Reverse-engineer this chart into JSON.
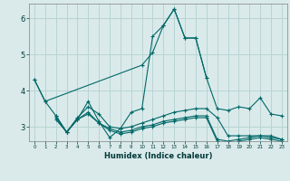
{
  "background_color": "#daeaea",
  "grid_color": "#b8d4d4",
  "line_color": "#006868",
  "xlabel": "Humidex (Indice chaleur)",
  "ylim": [
    2.6,
    6.4
  ],
  "xlim": [
    -0.5,
    23.5
  ],
  "yticks": [
    3,
    4,
    5,
    6
  ],
  "xtick_labels": [
    "0",
    "1",
    "2",
    "3",
    "4",
    "5",
    "6",
    "7",
    "8",
    "9",
    "10",
    "11",
    "12",
    "13",
    "14",
    "15",
    "16",
    "17",
    "18",
    "19",
    "20",
    "21",
    "22",
    "23"
  ],
  "series": [
    [
      4.3,
      3.7,
      null,
      null,
      null,
      null,
      null,
      null,
      null,
      null,
      4.7,
      5.05,
      5.8,
      6.25,
      5.45,
      5.45,
      4.35,
      null,
      null,
      null,
      null,
      null,
      null,
      null
    ],
    [
      4.3,
      3.7,
      3.3,
      2.85,
      3.2,
      3.7,
      3.15,
      2.7,
      2.95,
      3.4,
      3.5,
      5.5,
      5.8,
      6.25,
      5.45,
      5.45,
      4.35,
      3.5,
      3.45,
      3.55,
      3.5,
      3.8,
      3.35,
      3.3
    ],
    [
      null,
      null,
      3.3,
      2.85,
      3.25,
      3.55,
      3.35,
      3.0,
      2.95,
      3.0,
      3.1,
      3.2,
      3.3,
      3.4,
      3.45,
      3.5,
      3.5,
      3.25,
      2.75,
      2.75,
      2.75,
      2.75,
      2.75,
      2.65
    ],
    [
      null,
      null,
      3.25,
      2.85,
      3.2,
      3.4,
      3.1,
      2.95,
      2.85,
      2.9,
      3.0,
      3.05,
      3.15,
      3.2,
      3.25,
      3.3,
      3.3,
      2.65,
      2.6,
      2.65,
      2.7,
      2.75,
      2.7,
      2.65
    ],
    [
      null,
      null,
      3.2,
      2.85,
      3.2,
      3.35,
      3.1,
      2.9,
      2.8,
      2.85,
      2.95,
      3.0,
      3.1,
      3.15,
      3.2,
      3.25,
      3.25,
      2.6,
      2.55,
      2.6,
      2.65,
      2.7,
      2.65,
      2.6
    ]
  ]
}
